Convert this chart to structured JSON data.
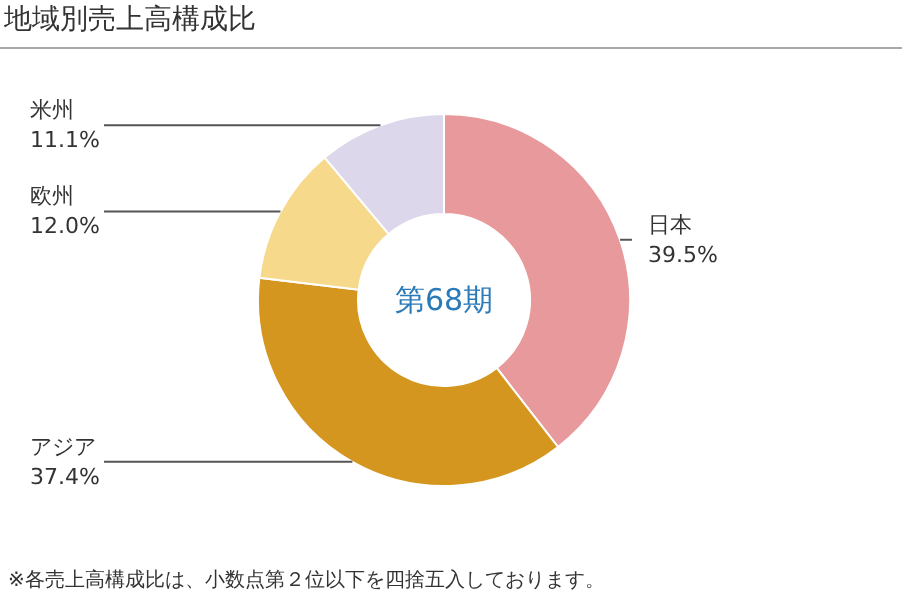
{
  "chart_data": {
    "type": "donut",
    "title": "地域別売上高構成比",
    "categories": [
      "日本",
      "アジア",
      "欧州",
      "米州"
    ],
    "values": [
      39.5,
      37.4,
      12.0,
      11.1
    ],
    "value_labels": [
      "39.5%",
      "37.4%",
      "12.0%",
      "11.1%"
    ],
    "colors": [
      "#e8999b",
      "#d4961f",
      "#f7d98b",
      "#dcd7ea"
    ],
    "annotations": [
      "第68期",
      "※各売上高構成比は、小数点第２位以下を四捨五入しております。"
    ]
  }
}
